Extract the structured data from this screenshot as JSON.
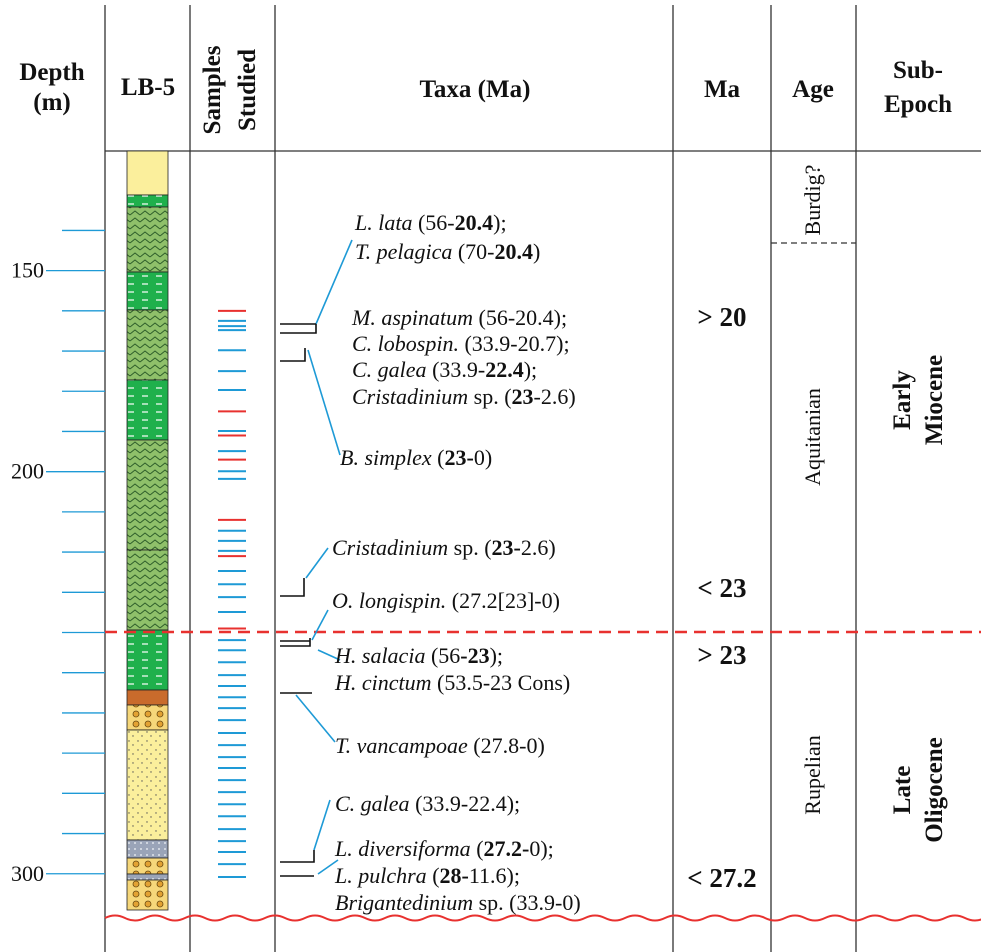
{
  "headers": {
    "depth": [
      "Depth",
      "(m)"
    ],
    "well": "LB-5",
    "samples": [
      "Samples",
      "Studied"
    ],
    "taxa": "Taxa (Ma)",
    "ma": "Ma",
    "age": "Age",
    "sub_epoch": [
      "Sub-",
      "Epoch"
    ]
  },
  "depth_axis": {
    "ylim": [
      120,
      312
    ],
    "yticks": [
      150,
      200,
      300
    ],
    "minor_ticks": [
      140,
      160,
      170,
      180,
      190,
      210,
      220,
      230,
      240,
      250,
      260,
      270,
      280,
      290
    ]
  },
  "samples": {
    "red": {
      "color": "#e8312f",
      "depths": [
        160,
        185,
        191,
        197,
        212,
        221,
        239
      ]
    },
    "blue": {
      "color": "#1e9ad6",
      "depths": [
        162.5,
        163.8,
        164.8,
        169.8,
        175,
        179.7,
        189.9,
        194.9,
        199.9,
        201.8,
        214.7,
        217.2,
        219.7,
        224.7,
        228,
        231.2,
        234.9,
        241.9,
        244.4,
        247.4,
        250.6,
        253.3,
        256.1,
        258.8,
        261.8,
        265,
        268,
        271,
        273.7,
        276.7,
        279.7,
        282.7,
        285.7,
        288.9,
        291.9,
        294.6,
        297.6,
        300.8
      ]
    }
  },
  "taxa": [
    [
      {
        "text": "L. lata",
        "style": "italic"
      },
      {
        "text": " (56-",
        "style": "normal"
      },
      {
        "text": "20.4",
        "style": "bold"
      },
      {
        "text": ");",
        "style": "normal"
      }
    ],
    [
      {
        "text": "T. pelagica",
        "style": "italic"
      },
      {
        "text": " (70-",
        "style": "normal"
      },
      {
        "text": "20.4",
        "style": "bold"
      },
      {
        "text": ")",
        "style": "normal"
      }
    ],
    [
      {
        "text": "M. aspinatum",
        "style": "italic"
      },
      {
        "text": " (56-20.4);",
        "style": "normal"
      }
    ],
    [
      {
        "text": "C. lobospin.",
        "style": "italic"
      },
      {
        "text": " (33.9-20.7);",
        "style": "normal"
      }
    ],
    [
      {
        "text": "C. galea",
        "style": "italic"
      },
      {
        "text": " (33.9-",
        "style": "normal"
      },
      {
        "text": "22.4",
        "style": "bold"
      },
      {
        "text": ");",
        "style": "normal"
      }
    ],
    [
      {
        "text": "Cristadinium",
        "style": "italic"
      },
      {
        "text": " sp. (",
        "style": "normal"
      },
      {
        "text": "23",
        "style": "bold"
      },
      {
        "text": "-2.6)",
        "style": "normal"
      }
    ],
    [
      {
        "text": "B. simplex",
        "style": "italic"
      },
      {
        "text": " (",
        "style": "normal"
      },
      {
        "text": "23-",
        "style": "bold"
      },
      {
        "text": "0)",
        "style": "normal"
      }
    ],
    [
      {
        "text": "Cristadinium",
        "style": "italic"
      },
      {
        "text": " sp. (",
        "style": "normal"
      },
      {
        "text": "23-",
        "style": "bold"
      },
      {
        "text": "2.6)",
        "style": "normal"
      }
    ],
    [
      {
        "text": "O. longispin.",
        "style": "italic"
      },
      {
        "text": " (27.2[23]-0)",
        "style": "normal"
      }
    ],
    [
      {
        "text": "H. salacia",
        "style": "italic"
      },
      {
        "text": " (56",
        "style": "normal"
      },
      {
        "text": "-23",
        "style": "bold"
      },
      {
        "text": ");",
        "style": "normal"
      }
    ],
    [
      {
        "text": "H. cinctum",
        "style": "italic"
      },
      {
        "text": " (53.5-23 Cons)",
        "style": "normal"
      }
    ],
    [
      {
        "text": "T. vancampoae",
        "style": "italic"
      },
      {
        "text": " (27.8-0)",
        "style": "normal"
      }
    ],
    [
      {
        "text": "C. galea",
        "style": "italic"
      },
      {
        "text": " (33.9-22.4);",
        "style": "normal"
      }
    ],
    [
      {
        "text": "L. diversiforma",
        "style": "italic"
      },
      {
        "text": " (",
        "style": "normal"
      },
      {
        "text": "27.2-",
        "style": "bold"
      },
      {
        "text": "0);",
        "style": "normal"
      }
    ],
    [
      {
        "text": "L. pulchra",
        "style": "italic"
      },
      {
        "text": " (",
        "style": "normal"
      },
      {
        "text": "28-",
        "style": "bold"
      },
      {
        "text": "11.6);",
        "style": "normal"
      }
    ],
    [
      {
        "text": "Brigantedinium",
        "style": "italic"
      },
      {
        "text": " sp. (33.9-0)",
        "style": "normal"
      }
    ]
  ],
  "ma_labels": [
    "> 20",
    "< 23",
    "> 23",
    "< 27.2"
  ],
  "ages": [
    "Burdig?",
    "Aquitanian",
    "Rupelian"
  ],
  "sub_epochs": [
    [
      "Early",
      "Miocene"
    ],
    [
      "Late",
      "Oligocene"
    ]
  ]
}
